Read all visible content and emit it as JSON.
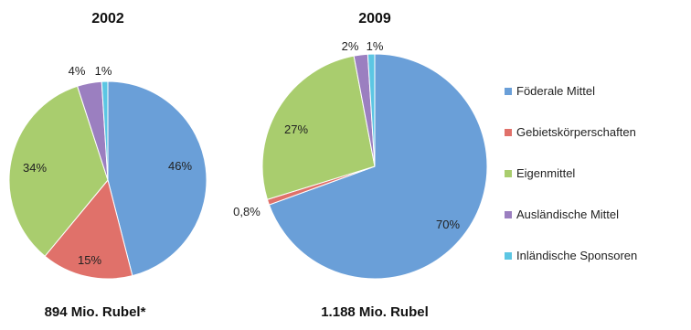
{
  "chart_data": {
    "type": "pie",
    "legend": {
      "position": "right",
      "entries": [
        {
          "label": "Föderale Mittel",
          "color": "#6a9fd8"
        },
        {
          "label": "Gebietskörperschaften",
          "color": "#e0716a"
        },
        {
          "label": "Eigenmittel",
          "color": "#a9cd6e"
        },
        {
          "label": "Ausländische Mittel",
          "color": "#9b7fc0"
        },
        {
          "label": "Inländische Sponsoren",
          "color": "#5cc6e3"
        }
      ]
    },
    "pies": [
      {
        "title": "2002",
        "total_label": "894 Mio. Rubel*",
        "slices": [
          {
            "category": "Föderale Mittel",
            "value": 46,
            "label": "46%"
          },
          {
            "category": "Gebietskörperschaften",
            "value": 15,
            "label": "15%"
          },
          {
            "category": "Eigenmittel",
            "value": 34,
            "label": "34%"
          },
          {
            "category": "Ausländische Mittel",
            "value": 4,
            "label": "4%"
          },
          {
            "category": "Inländische Sponsoren",
            "value": 1,
            "label": "1%"
          }
        ]
      },
      {
        "title": "2009",
        "total_label": "1.188 Mio. Rubel",
        "slices": [
          {
            "category": "Föderale Mittel",
            "value": 70,
            "label": "70%"
          },
          {
            "category": "Gebietskörperschaften",
            "value": 0.8,
            "label": "0,8%"
          },
          {
            "category": "Eigenmittel",
            "value": 27,
            "label": "27%"
          },
          {
            "category": "Ausländische Mittel",
            "value": 2,
            "label": "2%"
          },
          {
            "category": "Inländische Sponsoren",
            "value": 1,
            "label": "1%"
          }
        ]
      }
    ]
  }
}
